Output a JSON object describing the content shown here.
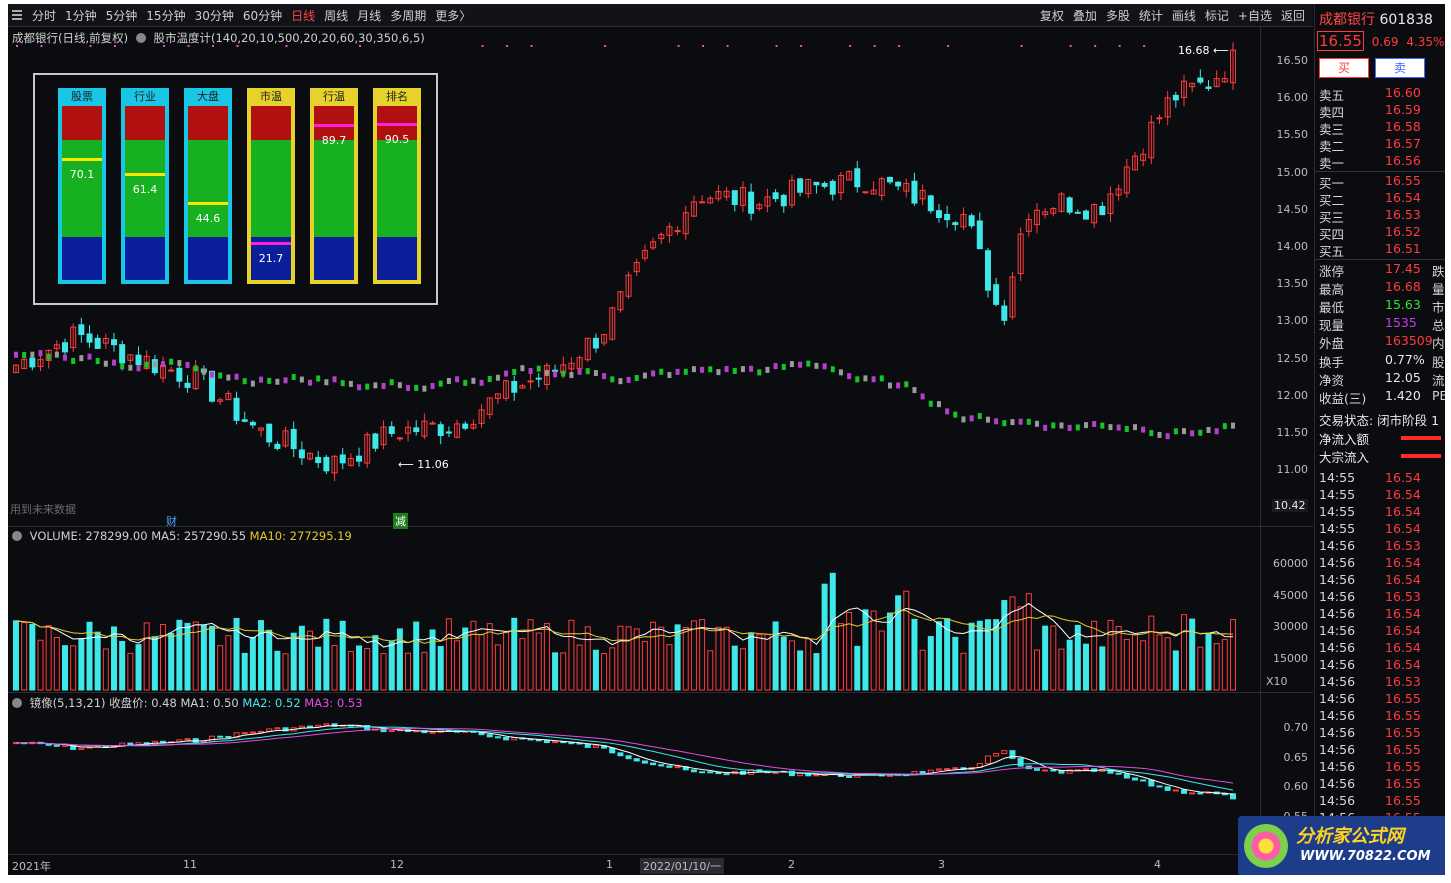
{
  "topbar": {
    "tabs": [
      "分时",
      "1分钟",
      "5分钟",
      "15分钟",
      "30分钟",
      "60分钟",
      "日线",
      "周线",
      "月线",
      "多周期",
      "更多〉"
    ],
    "active_tab": "日线",
    "tools": [
      "复权",
      "叠加",
      "多股",
      "统计",
      "画线",
      "标记",
      "+自选",
      "返回"
    ]
  },
  "main": {
    "title": "成都银行(日线,前复权)",
    "indicator": "股市温度计(140,20,10,500,20,20,60,30,350,6,5)",
    "high_label": "16.68",
    "low_label": "11.06",
    "future_note": "用到未来数据",
    "event_cai": "财",
    "event_jian": "减",
    "price_ticks": [
      "16.50",
      "16.00",
      "15.50",
      "15.00",
      "14.50",
      "14.00",
      "13.50",
      "13.00",
      "12.50",
      "12.00",
      "11.50",
      "11.00"
    ],
    "axis_bottom_value": "10.42"
  },
  "thermometer": {
    "gauges": [
      {
        "label": "股票",
        "value": "70.1",
        "level": 0.701,
        "frame": "#19c6e6",
        "mark": "#ffe600"
      },
      {
        "label": "行业",
        "value": "61.4",
        "level": 0.614,
        "frame": "#19c6e6",
        "mark": "#ffe600"
      },
      {
        "label": "大盘",
        "value": "44.6",
        "level": 0.446,
        "frame": "#19c6e6",
        "mark": "#ffe600"
      },
      {
        "label": "市温",
        "value": "21.7",
        "level": 0.217,
        "frame": "#e6d22a",
        "mark": "#ff1fdc"
      },
      {
        "label": "行温",
        "value": "89.7",
        "level": 0.897,
        "frame": "#e6d22a",
        "mark": "#ff1fdc"
      },
      {
        "label": "排名",
        "value": "90.5",
        "level": 0.905,
        "frame": "#e6d22a",
        "mark": "#ff1fdc"
      }
    ]
  },
  "volume": {
    "title_prefix": "VOLUME: 278299.00",
    "ma5": "MA5: 257290.55",
    "ma10": "MA10: 277295.19",
    "ticks": [
      "60000",
      "45000",
      "30000",
      "15000"
    ],
    "unit": "X10"
  },
  "mirror": {
    "title_prefix": "镜像(5,13,21) 收盘价: 0.48",
    "ma1": "MA1: 0.50",
    "ma2": "MA2: 0.52",
    "ma3": "MA3: 0.53",
    "ticks": [
      "0.70",
      "0.65",
      "0.60",
      "0.55"
    ]
  },
  "xaxis": [
    "2021年",
    "11",
    "12",
    "1",
    "2022/01/10/一",
    "2",
    "3",
    "4"
  ],
  "quote": {
    "name": "成都银行",
    "code": "601838",
    "price": "16.55",
    "change": "0.69",
    "pct": "4.35%",
    "buy_label": "买",
    "sell_label": "卖",
    "asks": [
      {
        "label": "卖五",
        "price": "16.60"
      },
      {
        "label": "卖四",
        "price": "16.59"
      },
      {
        "label": "卖三",
        "price": "16.58"
      },
      {
        "label": "卖二",
        "price": "16.57"
      },
      {
        "label": "卖一",
        "price": "16.56"
      }
    ],
    "bids": [
      {
        "label": "买一",
        "price": "16.55"
      },
      {
        "label": "买二",
        "price": "16.54"
      },
      {
        "label": "买三",
        "price": "16.53"
      },
      {
        "label": "买四",
        "price": "16.52"
      },
      {
        "label": "买五",
        "price": "16.51"
      }
    ],
    "stats": [
      {
        "label": "涨停",
        "value": "17.45",
        "color": "red",
        "tail": "跌"
      },
      {
        "label": "最高",
        "value": "16.68",
        "color": "red",
        "tail": "量"
      },
      {
        "label": "最低",
        "value": "15.63",
        "color": "grn",
        "tail": "市"
      },
      {
        "label": "现量",
        "value": "1535",
        "color": "pur",
        "tail": "总"
      },
      {
        "label": "外盘",
        "value": "163509",
        "color": "red",
        "tail": "内"
      },
      {
        "label": "换手",
        "value": "0.77%",
        "color": "wht",
        "tail": "股"
      },
      {
        "label": "净资",
        "value": "12.05",
        "color": "wht",
        "tail": "流"
      },
      {
        "label": "收益(三)",
        "value": "1.420",
        "color": "wht",
        "tail": "PE"
      }
    ],
    "status": "交易状态: 闭市阶段 1",
    "netflow_label": "净流入额",
    "block_label": "大宗流入",
    "ticks": [
      {
        "time": "14:55",
        "price": "16.54"
      },
      {
        "time": "14:55",
        "price": "16.54"
      },
      {
        "time": "14:55",
        "price": "16.54"
      },
      {
        "time": "14:55",
        "price": "16.54"
      },
      {
        "time": "14:56",
        "price": "16.53"
      },
      {
        "time": "14:56",
        "price": "16.54"
      },
      {
        "time": "14:56",
        "price": "16.54"
      },
      {
        "time": "14:56",
        "price": "16.53"
      },
      {
        "time": "14:56",
        "price": "16.54"
      },
      {
        "time": "14:56",
        "price": "16.54"
      },
      {
        "time": "14:56",
        "price": "16.54"
      },
      {
        "time": "14:56",
        "price": "16.54"
      },
      {
        "time": "14:56",
        "price": "16.53"
      },
      {
        "time": "14:56",
        "price": "16.55"
      },
      {
        "time": "14:56",
        "price": "16.55"
      },
      {
        "time": "14:56",
        "price": "16.55"
      },
      {
        "time": "14:56",
        "price": "16.55"
      },
      {
        "time": "14:56",
        "price": "16.55"
      },
      {
        "time": "14:56",
        "price": "16.55"
      },
      {
        "time": "14:56",
        "price": "16.55"
      },
      {
        "time": "14:56",
        "price": "16.55"
      }
    ]
  },
  "logo": {
    "name": "分析家公式网",
    "url": "WWW.70822.COM"
  },
  "colors": {
    "up": "#ff3b3b",
    "down": "#3ee8e8",
    "bg": "#0b0c10",
    "ma_white": "#ffffff",
    "ma_yellow": "#e6c92e",
    "ma_magenta": "#e24ee2"
  }
}
